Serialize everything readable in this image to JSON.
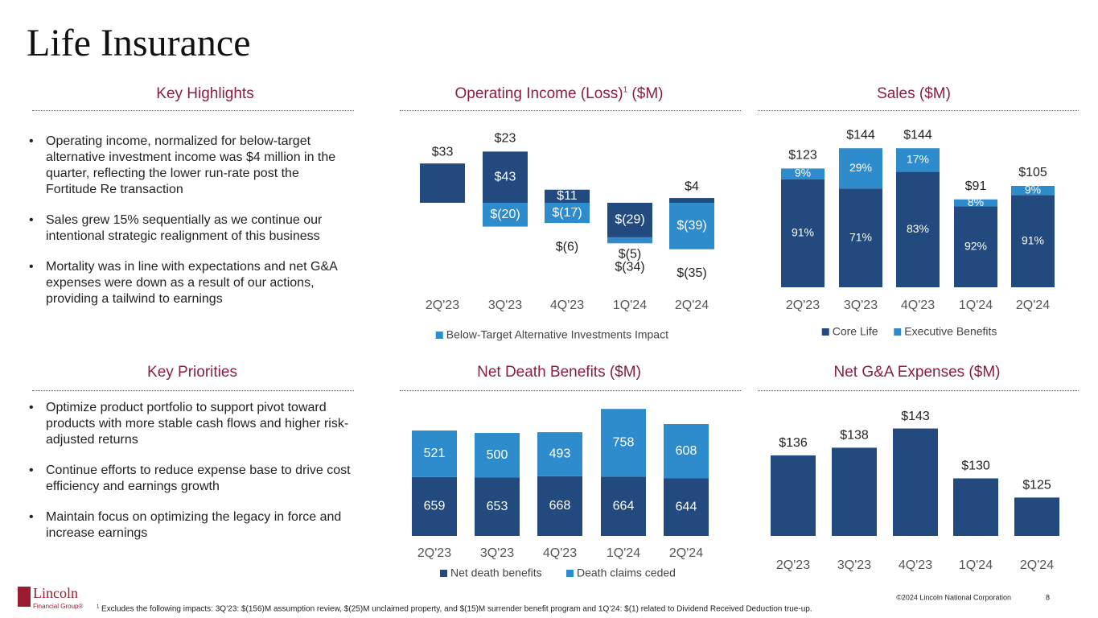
{
  "title": "Life Insurance",
  "sections": [
    {
      "heading": "Key Highlights",
      "bullets": [
        "Operating income, normalized for below-target alternative investment income was $4 million in the quarter, reflecting the lower run-rate post the Fortitude Re transaction",
        "Sales grew 15% sequentially as we continue our intentional strategic realignment of this business",
        "Mortality was in line with expectations and net G&A expenses were down as a result of our actions, providing a tailwind to earnings"
      ]
    },
    {
      "heading": "Key Priorities",
      "bullets": [
        "Optimize product portfolio to support pivot toward products with more stable cash flows and higher risk-adjusted returns",
        "Continue efforts to reduce expense base to drive cost efficiency and earnings growth",
        "Maintain focus on optimizing the legacy in force and increase earnings"
      ]
    }
  ],
  "chart_data": [
    {
      "type": "bar",
      "stacked": true,
      "title": "Operating Income (Loss)",
      "title_footnote": "1",
      "title_unit": " ($M)",
      "categories": [
        "2Q'23",
        "3Q'23",
        "4Q'23",
        "1Q'24",
        "2Q'24"
      ],
      "series": [
        {
          "color": "#234a7e",
          "values": [
            33,
            43,
            11,
            -29,
            4
          ],
          "value_labels": [
            "$33",
            "$43",
            "$11",
            "$(29)",
            "$4"
          ]
        },
        {
          "name": "Below-Target Alternative Investments Impact",
          "color": "#2e8bcc",
          "values": [
            null,
            -20,
            -17,
            -5,
            -39
          ],
          "value_labels": [
            null,
            "$(20)",
            "$(17)",
            "$(5)",
            "$(39)"
          ]
        }
      ],
      "totals": {
        "values": [
          null,
          23,
          -6,
          -34,
          -35
        ],
        "value_labels": [
          null,
          "$23",
          "$(6)",
          "$(34)",
          "$(35)"
        ]
      },
      "legend": "bottom"
    },
    {
      "type": "bar",
      "stacked": true,
      "title": "Sales ($M)",
      "segments_as_percent_of_total": true,
      "categories": [
        "2Q'23",
        "3Q'23",
        "4Q'23",
        "1Q'24",
        "2Q'24"
      ],
      "totals": {
        "values": [
          123,
          144,
          144,
          91,
          105
        ],
        "value_labels": [
          "$123",
          "$144",
          "$144",
          "$91",
          "$105"
        ]
      },
      "series": [
        {
          "name": "Core Life",
          "color": "#234a7e",
          "values": [
            91,
            71,
            83,
            92,
            91
          ],
          "value_labels": [
            "91%",
            "71%",
            "83%",
            "92%",
            "91%"
          ]
        },
        {
          "name": "Executive Benefits",
          "color": "#2e8bcc",
          "values": [
            9,
            29,
            17,
            8,
            9
          ],
          "value_labels": [
            "9%",
            "29%",
            "17%",
            "8%",
            "9%"
          ]
        }
      ],
      "legend": "bottom"
    },
    {
      "type": "bar",
      "stacked": true,
      "title": "Net Death Benefits ($M)",
      "categories": [
        "2Q'23",
        "3Q'23",
        "4Q'23",
        "1Q'24",
        "2Q'24"
      ],
      "series": [
        {
          "name": "Net death benefits",
          "color": "#234a7e",
          "values": [
            659,
            653,
            668,
            664,
            644
          ]
        },
        {
          "name": "Death claims ceded",
          "color": "#2e8bcc",
          "values": [
            521,
            500,
            493,
            758,
            608
          ]
        }
      ],
      "legend": "bottom"
    },
    {
      "type": "bar",
      "title": "Net G&A Expenses ($M)",
      "categories": [
        "2Q'23",
        "3Q'23",
        "4Q'23",
        "1Q'24",
        "2Q'24"
      ],
      "values": [
        136,
        138,
        143,
        130,
        125
      ],
      "value_labels": [
        "$136",
        "$138",
        "$143",
        "$130",
        "$125"
      ],
      "color": "#234a7e",
      "ylim": [
        115,
        145
      ]
    }
  ],
  "footer": {
    "logo": "Lincoln",
    "logo_sub": "Financial Group®",
    "footnote_mark": "1",
    "footnote": "Excludes the following impacts: 3Q’23: $(156)M assumption review, $(25)M unclaimed property, and $(15)M surrender benefit program and 1Q’24: $(1) related to Dividend Received Deduction true-up.",
    "copyright": "©2024 Lincoln National Corporation",
    "page": "8"
  }
}
